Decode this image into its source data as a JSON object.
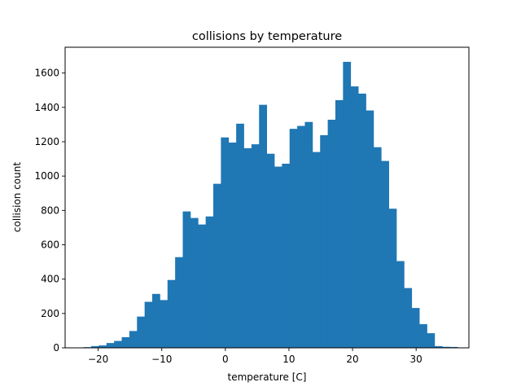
{
  "chart_data": {
    "type": "bar",
    "title": "collisions by temperature",
    "xlabel": "temperature [C]",
    "ylabel": "collision count",
    "xlim": [
      -25.2,
      38.3
    ],
    "ylim": [
      0,
      1750
    ],
    "xticks": [
      -20,
      -10,
      0,
      10,
      20,
      30
    ],
    "yticks": [
      0,
      200,
      400,
      600,
      800,
      1000,
      1200,
      1400,
      1600
    ],
    "grid": false,
    "legend": "none",
    "bar_color": "#1f77b4",
    "bin_start": -22.3,
    "bin_width": 1.2,
    "values": [
      4,
      10,
      14,
      28,
      40,
      62,
      98,
      182,
      268,
      314,
      278,
      395,
      528,
      794,
      756,
      718,
      765,
      955,
      1225,
      1195,
      1305,
      1162,
      1185,
      1415,
      1130,
      1055,
      1072,
      1275,
      1292,
      1315,
      1140,
      1238,
      1328,
      1442,
      1665,
      1522,
      1480,
      1382,
      1168,
      1088,
      810,
      505,
      348,
      232,
      138,
      85,
      10,
      6,
      5
    ]
  }
}
